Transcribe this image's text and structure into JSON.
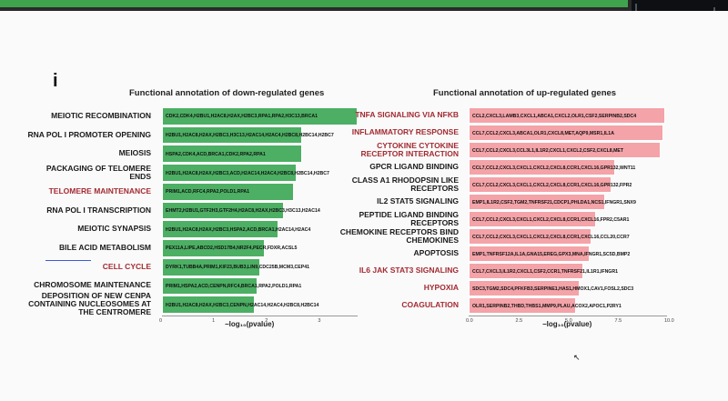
{
  "panel_letter": "i",
  "down": {
    "title": "Functional annotation of down-regulated genes",
    "xlabel": "−log₁₀(pvalue)",
    "ticks": [
      "0",
      "1",
      "2",
      "3"
    ],
    "rows": [
      {
        "label": "MEIOTIC RECOMBINATION",
        "red": false,
        "genes": "CDK2,CDK4,H2BU1,H2AC8,H2AX,H2BC3,RPA1,RPA2,H3C13,BRCA1",
        "value": 3.7
      },
      {
        "label": "RNA POL I PROMOTER OPENING",
        "red": false,
        "genes": "H2BU1,H2AC8,H2AX,H2BC3,H3C13,H2AC14,H2AC4,H2BC8,H2BC14,H2BC7",
        "value": 2.65
      },
      {
        "label": "MEIOSIS",
        "red": false,
        "genes": "HSPA2,CDK4,ACD,BRCA1,CDK2,RPA2,RPA1",
        "value": 2.65
      },
      {
        "label": "PACKAGING OF TELOMERE ENDS",
        "red": false,
        "genes": "H2BU1,H2AC8,H2AX,H2BC3,ACD,H2AC14,H2AC4,H2BC8,H2BC14,H2BC7",
        "value": 2.55
      },
      {
        "label": "TELOMERE MAINTENANCE",
        "red": true,
        "genes": "PRIM1,ACD,RFC4,RPA2,POLD1,RPA1",
        "value": 2.5
      },
      {
        "label": "RNA POL I TRANSCRIPTION",
        "red": false,
        "genes": "EHMT2,H2BU1,GTF2H3,GTF2H4,H2AC8,H2AX,H2BC3,H3C13,H2AC14",
        "value": 2.3
      },
      {
        "label": "MEIOTIC SYNAPSIS",
        "red": false,
        "genes": "H2BU1,H2AC8,H2AX,H2BC3,HSPA2,ACD,BRCA1,H2AC14,H2AC4",
        "value": 2.2
      },
      {
        "label": "BILE ACID METABOLISM",
        "red": false,
        "genes": "PEX11A,LIPE,ABCD2,HSD17B4,NR2F4,PECR,FDXR,ACSL5",
        "value": 1.95
      },
      {
        "label": "CELL CYCLE",
        "red": true,
        "genes": "DYRK1,TUBB4A,PRIM1,KIF23,BUB3,LIN9,CDC25B,MCM3,CEP41",
        "value": 1.85
      },
      {
        "label": "CHROMOSOME MAINTENANCE",
        "red": false,
        "genes": "PRIM1,HSPA2,ACD,CENPN,RFC4,BRCA1,RPA2,POLD1,RPA1",
        "value": 1.8
      },
      {
        "label": "DEPOSITION OF NEW CENPA CONTAINING NUCLEOSOMES AT THE CENTROMERE",
        "red": false,
        "genes": "H2BU1,H2AC8,H2AX,H2BC3,CENPN,H2AC14,H2AC4,H2BC8,H2BC14",
        "value": 1.75
      }
    ]
  },
  "up": {
    "title": "Functional annotation of up-regulated genes",
    "xlabel": "−log₁₀(pvalue)",
    "ticks": [
      "0.0",
      "2.5",
      "5.0",
      "7.5",
      "10.0"
    ],
    "rows": [
      {
        "label": "TNFA SIGNALING VIA NFKB",
        "red": true,
        "genes": "CCL2,CXCL3,LAMB3,CXCL1,ABCA1,CXCL2,OLR1,CSF2,SERPINB2,SDC4",
        "value": 9.9
      },
      {
        "label": "INFLAMMATORY RESPONSE",
        "red": true,
        "genes": "CCL7,CCL2,CXCL3,ABCA1,OLR1,CXCL8,MET,AQP9,MSR1,IL1A",
        "value": 9.8
      },
      {
        "label": "CYTOKINE CYTOKINE RECEPTOR INTERACTION",
        "red": true,
        "genes": "CCL7,CCL2,CXCL3,CCL3L1,IL1R2,CXCL1,CXCL2,CSF2,CXCL8,MET",
        "value": 9.7
      },
      {
        "label": "GPCR LIGAND BINDING",
        "red": false,
        "genes": "CCL7,CCL2,CXCL3,CXCL1,CXCL2,CXCL8,CCR1,CXCL16,GPR132,WNT11",
        "value": 7.4
      },
      {
        "label": "CLASS A1 RHODOPSIN LIKE RECEPTORS",
        "red": false,
        "genes": "CCL7,CCL2,CXCL3,CXCL1,CXCL2,CXCL8,CCR1,CXCL16,GPR132,FPR2",
        "value": 7.2
      },
      {
        "label": "IL2 STAT5 SIGNALING",
        "red": false,
        "genes": "EMP1,IL1R2,CSF2,TGM2,TNFRSF21,CDCP1,PHLDA1,NCS1,IFNGR1,SNX9",
        "value": 6.9
      },
      {
        "label": "PEPTIDE LIGAND BINDING RECEPTORS",
        "red": false,
        "genes": "CCL7,CCL2,CXCL3,CXCL1,CXCL2,CXCL8,CCR1,CXCL16,FPR2,C5AR1",
        "value": 6.4
      },
      {
        "label": "CHEMOKINE RECEPTORS BIND CHEMOKINES",
        "red": false,
        "genes": "CCL7,CCL2,CXCL3,CXCL1,CXCL2,CXCL8,CCR1,CXCL16,CCL20,CCR7",
        "value": 6.2
      },
      {
        "label": "APOPTOSIS",
        "red": false,
        "genes": "EMP1,TNFRSF12A,IL1A,GNA15,EREG,GPX3,MNA,IFNGR1,SC5D,BMP2",
        "value": 6.1
      },
      {
        "label": "IL6 JAK STAT3 SIGNALING",
        "red": true,
        "genes": "CCL7,CXCL3,IL1R2,CXCL1,CSF2,CCR1,TNFRSF21,IL1R1,IFNGR1",
        "value": 5.8
      },
      {
        "label": "HYPOXIA",
        "red": true,
        "genes": "SDC3,TGM2,SDC4,PFKFB3,SERPINE1,HAS1,HMOX1,CAV1,FOSL2,SDC3",
        "value": 5.6
      },
      {
        "label": "COAGULATION",
        "red": true,
        "genes": "OLR1,SERPINB2,THBD,THBS1,MMP9,PLAU,ACOX2,APOC1,P2RY1",
        "value": 5.4
      }
    ]
  }
}
